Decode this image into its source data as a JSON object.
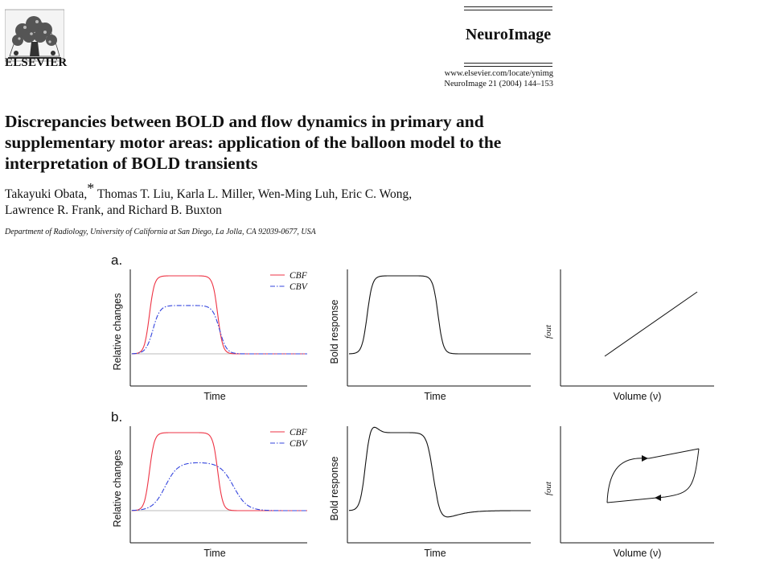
{
  "header": {
    "publisher": "ELSEVIER",
    "journal_name": "NeuroImage",
    "journal_url": "www.elsevier.com/locate/ynimg",
    "citation": "NeuroImage 21 (2004) 144–153"
  },
  "article": {
    "title_lines": [
      "Discrepancies between BOLD and flow dynamics in primary and",
      "supplementary motor areas: application of the balloon model to the",
      "interpretation of BOLD transients"
    ],
    "author_line1_a": "Takayuki Obata,",
    "author_line1_mark": "*",
    "author_line1_b": " Thomas T. Liu, Karla L. Miller, Wen-Ming Luh, Eric C. Wong,",
    "author_line2": "Lawrence R. Frank, and Richard B. Buxton",
    "affiliation": "Department of Radiology, University of California at San Diego, La Jolla, CA 92039-0677, USA"
  },
  "colors": {
    "cbf": "#ee3344",
    "cbv": "#3344dd",
    "axis": "#111111",
    "baseline": "#bbbbbb"
  },
  "chart_data": [
    {
      "type": "line",
      "panel": "a",
      "panel_label": "a.",
      "xlabel": "Time",
      "ylabel": "Relative changes",
      "series": [
        {
          "name": "CBF",
          "style": "solid",
          "color": "#ee3344",
          "shape": "plateau"
        },
        {
          "name": "CBV",
          "style": "dash-dot",
          "color": "#3344dd",
          "shape": "plateau-fast"
        }
      ]
    },
    {
      "type": "line",
      "panel": "a",
      "xlabel": "Time",
      "ylabel": "Bold response",
      "series": [
        {
          "shape": "plateau"
        }
      ]
    },
    {
      "type": "line",
      "panel": "a",
      "xlabel": "Volume (ν)",
      "ylabel": "fout",
      "series": [
        {
          "shape": "linear"
        }
      ]
    },
    {
      "type": "line",
      "panel": "b",
      "panel_label": "b.",
      "xlabel": "Time",
      "ylabel": "Relative changes",
      "series": [
        {
          "name": "CBF",
          "style": "solid",
          "color": "#ee3344",
          "shape": "plateau"
        },
        {
          "name": "CBV",
          "style": "dash-dot",
          "color": "#3344dd",
          "shape": "plateau-slow"
        }
      ]
    },
    {
      "type": "line",
      "panel": "b",
      "xlabel": "Time",
      "ylabel": "Bold response",
      "series": [
        {
          "shape": "overshoot-undershoot"
        }
      ]
    },
    {
      "type": "line",
      "panel": "b",
      "xlabel": "Volume (ν)",
      "ylabel": "fout",
      "series": [
        {
          "shape": "hysteresis-loop"
        }
      ]
    }
  ]
}
